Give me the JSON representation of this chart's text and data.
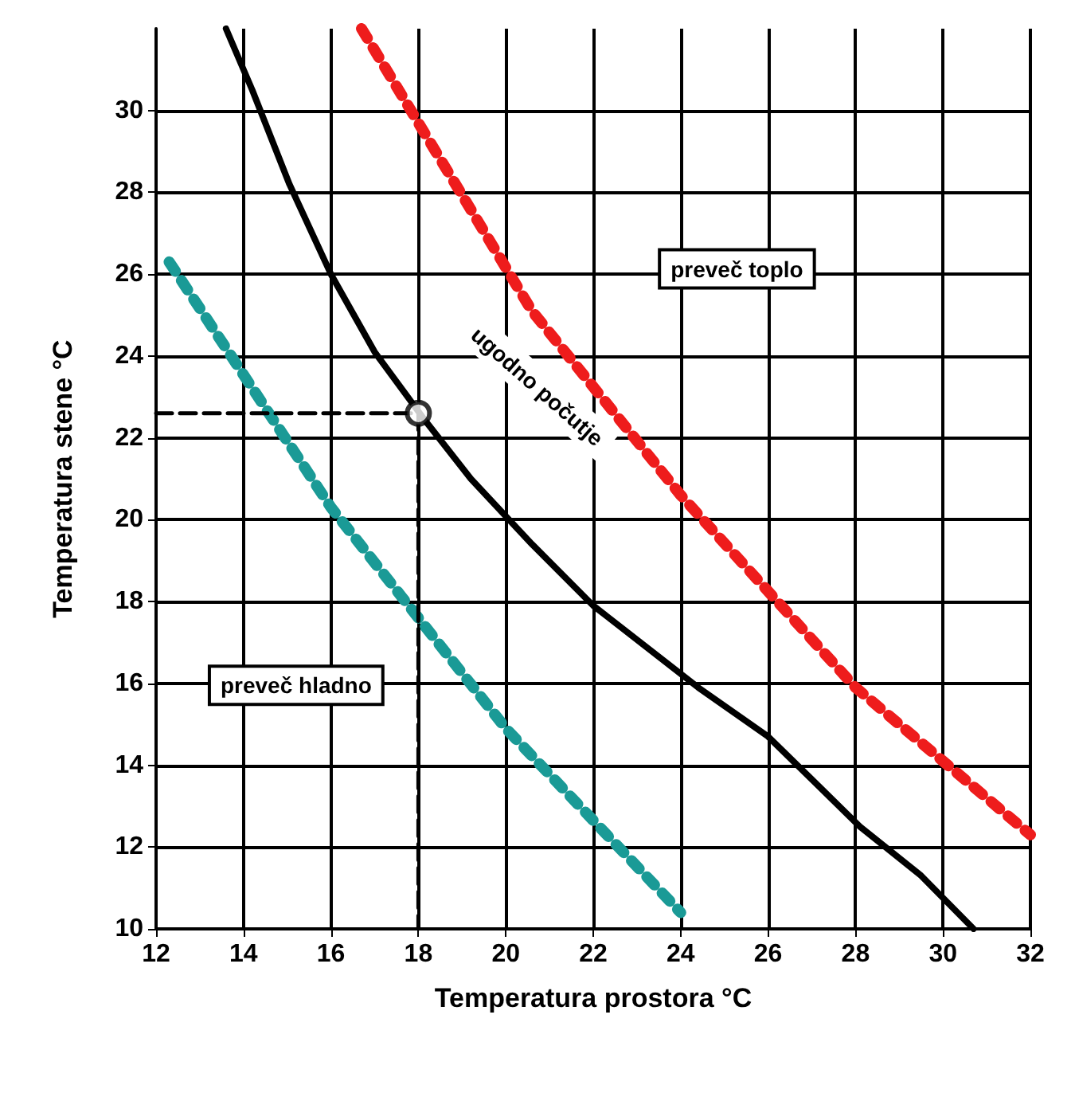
{
  "chart_data": {
    "type": "line",
    "xlabel": "Temperatura prostora °C",
    "ylabel": "Temperatura stene °C",
    "xlim": [
      12,
      32
    ],
    "ylim": [
      10,
      32
    ],
    "xticks": [
      12,
      14,
      16,
      18,
      20,
      22,
      24,
      26,
      28,
      30,
      32
    ],
    "yticks": [
      10,
      12,
      14,
      16,
      18,
      20,
      22,
      24,
      26,
      28,
      30
    ],
    "grid": true,
    "series": [
      {
        "color": "#000000",
        "line_style": "solid",
        "marker": "none",
        "x": [
          13.6,
          14.2,
          15.05,
          16,
          17,
          18.1,
          19.2,
          20.6,
          22,
          24.4,
          26,
          28.1,
          29.5,
          30.7
        ],
        "values": [
          32,
          30.5,
          28.2,
          26,
          24.1,
          22.5,
          21,
          19.4,
          17.9,
          15.9,
          14.7,
          12.5,
          11.3,
          10
        ]
      },
      {
        "color": "#ee1c1c",
        "line_style": "dotted",
        "marker": "none",
        "x": [
          16.7,
          20.6,
          24,
          28,
          32
        ],
        "values": [
          32,
          25.1,
          20.6,
          15.9,
          12.3
        ]
      },
      {
        "color": "#1a9a96",
        "line_style": "dotted",
        "marker": "none",
        "x": [
          12.3,
          16,
          20,
          24
        ],
        "values": [
          26.3,
          20.3,
          14.9,
          10.4
        ]
      },
      {
        "color": "#000000",
        "line_style": "dashed",
        "marker": "none",
        "x": [
          12,
          18,
          18
        ],
        "values": [
          22.6,
          22.6,
          10
        ]
      },
      {
        "type": "scatter",
        "color": "#000000",
        "marker": "circle",
        "x": [
          18
        ],
        "values": [
          22.6
        ]
      }
    ],
    "annotations": [
      "preveč toplo",
      "ugodno počutje",
      "preveč hladno"
    ]
  }
}
